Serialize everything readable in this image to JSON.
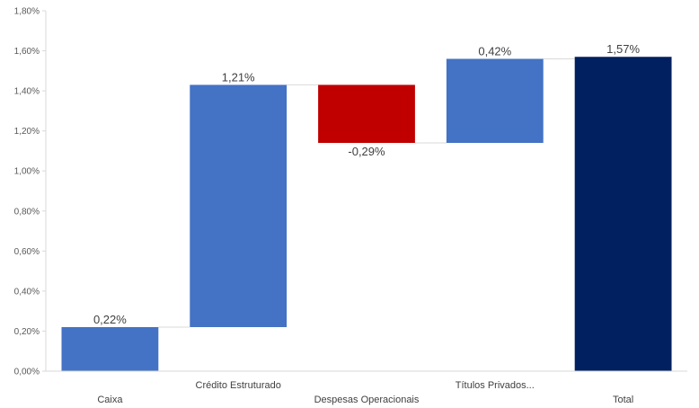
{
  "chart_data": {
    "type": "waterfall",
    "categories": [
      "Caixa",
      "Crédito Estruturado",
      "Despesas Operacionais",
      "Títulos Privados...",
      "Total"
    ],
    "values": [
      0.22,
      1.21,
      -0.29,
      0.42,
      1.57
    ],
    "data_labels": [
      "0,22%",
      "1,21%",
      "-0,29%",
      "0,42%",
      "1,57%"
    ],
    "bar_roles": [
      "increase",
      "increase",
      "decrease",
      "increase",
      "total"
    ],
    "y_ticks": [
      "0,00%",
      "0,20%",
      "0,40%",
      "0,60%",
      "0,80%",
      "1,00%",
      "1,20%",
      "1,40%",
      "1,60%",
      "1,80%"
    ],
    "ylim": [
      0,
      1.8
    ],
    "title": "",
    "xlabel": "",
    "ylabel": "",
    "grid": false,
    "legend": "none",
    "colors": {
      "increase": "#4472C4",
      "decrease": "#C00000",
      "total": "#002060",
      "axis": "#D9D9D9",
      "connector": "#D9D9D9"
    }
  }
}
